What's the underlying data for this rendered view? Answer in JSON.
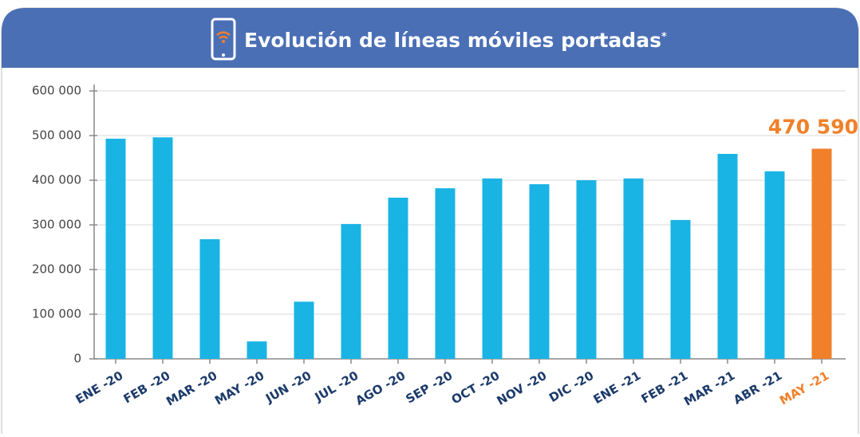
{
  "chart_data": {
    "type": "bar",
    "title": "Evolución de líneas móviles portadas",
    "title_mark": "*",
    "categories": [
      "ENE -20",
      "FEB -20",
      "MAR -20",
      "MAY -20",
      "JUN -20",
      "JUL -20",
      "AGO -20",
      "SEP -20",
      "OCT -20",
      "NOV -20",
      "DIC -20",
      "ENE -21",
      "FEB -21",
      "MAR -21",
      "ABR -21",
      "MAY -21"
    ],
    "values": [
      493000,
      496000,
      268000,
      39000,
      128000,
      302000,
      361000,
      382000,
      404000,
      391000,
      400000,
      404000,
      311000,
      459000,
      420000,
      470590
    ],
    "value_labels": [
      null,
      null,
      null,
      null,
      null,
      null,
      null,
      null,
      null,
      null,
      null,
      null,
      null,
      null,
      null,
      "470 590"
    ],
    "colors": [
      "#1ab4e4",
      "#1ab4e4",
      "#1ab4e4",
      "#1ab4e4",
      "#1ab4e4",
      "#1ab4e4",
      "#1ab4e4",
      "#1ab4e4",
      "#1ab4e4",
      "#1ab4e4",
      "#1ab4e4",
      "#1ab4e4",
      "#1ab4e4",
      "#1ab4e4",
      "#1ab4e4",
      "#f0802a"
    ],
    "category_label_colors": [
      "#1b3a6b",
      "#1b3a6b",
      "#1b3a6b",
      "#1b3a6b",
      "#1b3a6b",
      "#1b3a6b",
      "#1b3a6b",
      "#1b3a6b",
      "#1b3a6b",
      "#1b3a6b",
      "#1b3a6b",
      "#1b3a6b",
      "#1b3a6b",
      "#1b3a6b",
      "#1b3a6b",
      "#f0802a"
    ],
    "ylim": [
      0,
      600000
    ],
    "yticks": [
      {
        "value": 0,
        "label": "0"
      },
      {
        "value": 100000,
        "label": "100 000"
      },
      {
        "value": 200000,
        "label": "200 000"
      },
      {
        "value": 300000,
        "label": "300 000"
      },
      {
        "value": 400000,
        "label": "400 000"
      },
      {
        "value": 500000,
        "label": "500 000"
      },
      {
        "value": 600000,
        "label": "600 000"
      }
    ],
    "grid": true
  }
}
